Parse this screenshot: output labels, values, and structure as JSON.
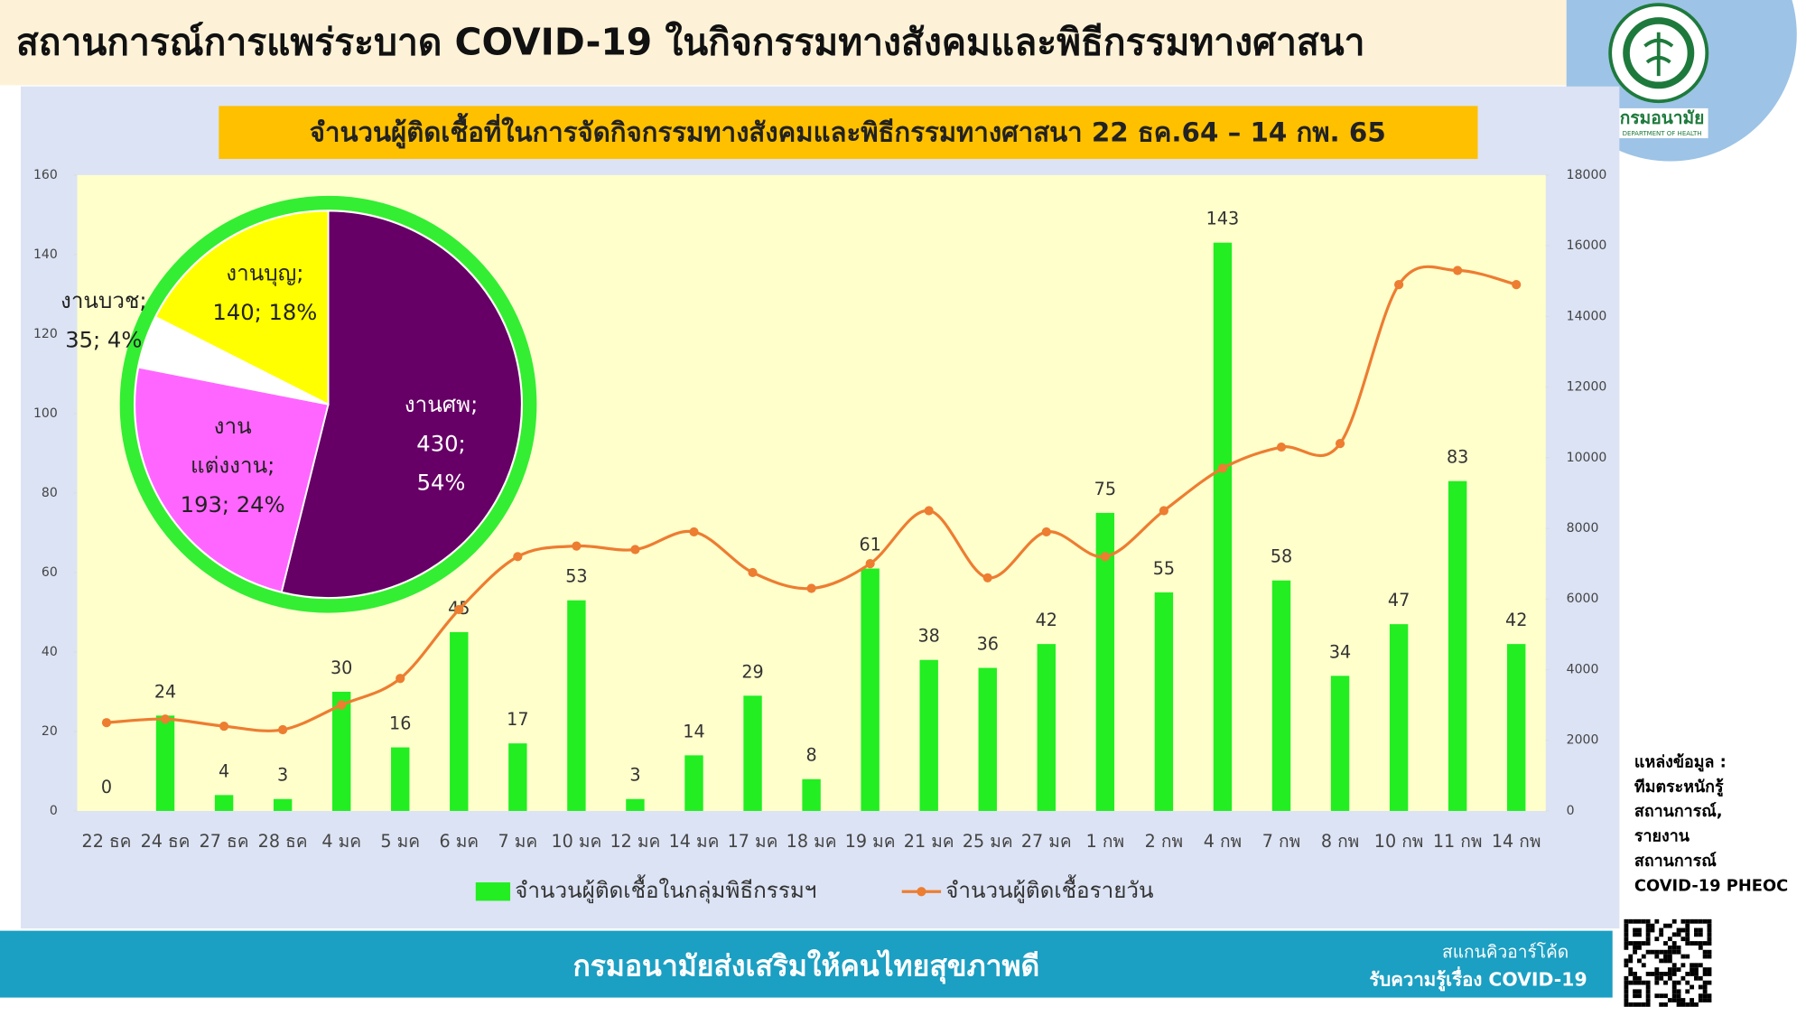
{
  "header": {
    "title": "สถานการณ์การแพร่ระบาด COVID-19 ในกิจกรรมทางสังคมและพิธีกรรมทางศาสนา"
  },
  "logo": {
    "name": "กรมอนามัย",
    "subtext": "DEPARTMENT OF HEALTH"
  },
  "chart_data": [
    {
      "type": "bar",
      "title": "จำนวนผู้ติดเชื้อที่ในการจัดกิจกรรมทางสังคมและพิธีกรรมทางศาสนา 22 ธค.64 – 14 กพ. 65",
      "categories": [
        "22 ธค",
        "24 ธค",
        "27 ธค",
        "28 ธค",
        "4 มค",
        "5 มค",
        "6 มค",
        "7 มค",
        "10 มค",
        "12 มค",
        "14 มค",
        "17 มค",
        "18 มค",
        "19 มค",
        "21 มค",
        "25 มค",
        "27 มค",
        "1 กพ",
        "2 กพ",
        "4 กพ",
        "7 กพ",
        "8 กพ",
        "10 กพ",
        "11 กพ",
        "14 กพ"
      ],
      "series": [
        {
          "name": "จำนวนผู้ติดเชื้อในกลุ่มพิธีกรรมฯ",
          "color": "#22ee22",
          "type": "bar",
          "values": [
            0,
            24,
            4,
            3,
            30,
            16,
            45,
            17,
            53,
            3,
            14,
            29,
            8,
            61,
            38,
            36,
            42,
            75,
            55,
            143,
            58,
            34,
            47,
            83,
            42
          ]
        },
        {
          "name": "จำนวนผู้ติดเชื้อรายวัน",
          "color": "#ed7d31",
          "type": "line",
          "axis": "y2",
          "values": [
            2500,
            2600,
            2400,
            2300,
            3000,
            3750,
            5700,
            7200,
            7500,
            7400,
            7900,
            6750,
            6300,
            7000,
            8500,
            6600,
            7900,
            7200,
            8500,
            9700,
            10300,
            10400,
            14900,
            15300,
            14900
          ]
        }
      ],
      "ylim": [
        0,
        160
      ],
      "yticks": [
        0,
        20,
        40,
        60,
        80,
        100,
        120,
        140,
        160
      ],
      "y2lim": [
        0,
        18000
      ],
      "y2ticks": [
        0,
        2000,
        4000,
        6000,
        8000,
        10000,
        12000,
        14000,
        16000,
        18000
      ],
      "legend": "bottom",
      "grid": false
    },
    {
      "type": "pie",
      "values": [
        430,
        193,
        35,
        140
      ],
      "colors": [
        "#660066",
        "#ff66ff",
        "#ffffff",
        "#ffff00"
      ],
      "labels": [
        [
          "งานศพ;",
          "430;",
          "54%"
        ],
        [
          "งาน",
          "แต่งงาน;",
          "193; 24%"
        ],
        [
          "งานบวช;",
          "35; 4%"
        ],
        [
          "งานบุญ;",
          "140; 18%"
        ]
      ],
      "border_color": "#33ee33"
    }
  ],
  "source": {
    "lines": [
      "แหล่งข้อมูล :",
      "ทีมตระหนักรู้",
      "สถานการณ์,",
      "รายงาน",
      "สถานการณ์",
      "COVID-19 PHEOC"
    ]
  },
  "footer": {
    "slogan": "กรมอนามัยส่งเสริมให้คนไทยสุขภาพดี",
    "qr_caption": [
      "สแกนคิวอาร์โค้ด",
      "รับความรู้เรื่อง COVID-19"
    ]
  }
}
